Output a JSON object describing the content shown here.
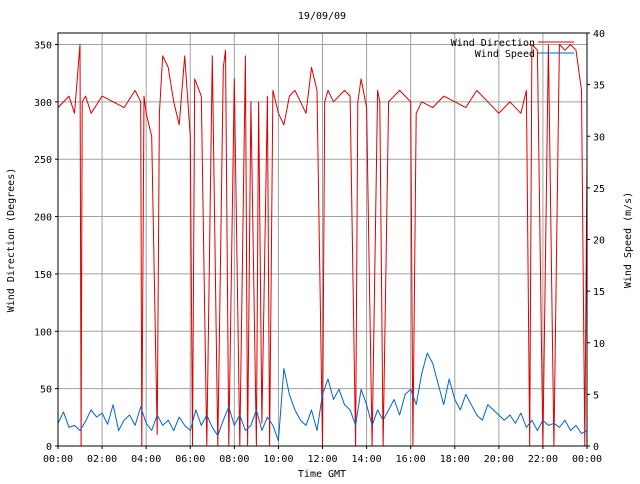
{
  "chart_data": {
    "type": "line",
    "title": "19/09/09",
    "xlabel": "Time GMT",
    "ylabel_left": "Wind Direction (Degrees)",
    "ylabel_right": "Wind Speed (m/s)",
    "x_ticks": [
      "00:00",
      "02:00",
      "04:00",
      "06:00",
      "08:00",
      "10:00",
      "12:00",
      "14:00",
      "16:00",
      "18:00",
      "20:00",
      "22:00",
      "00:00"
    ],
    "x_range_hours": [
      0,
      24
    ],
    "y_left_range": [
      0,
      360
    ],
    "y_left_ticks": [
      0,
      50,
      100,
      150,
      200,
      250,
      300,
      350
    ],
    "y_right_range": [
      0,
      40
    ],
    "y_right_ticks": [
      0,
      5,
      10,
      15,
      20,
      25,
      30,
      35,
      40
    ],
    "grid": true,
    "legend_position": "top-right",
    "colors": {
      "direction": "#dd0000",
      "speed": "#0066cc",
      "grid": "#a0a0a0"
    },
    "series": [
      {
        "name": "Wind Direction",
        "axis": "left",
        "x": [
          0,
          0.5,
          0.75,
          1,
          1.05,
          1.1,
          1.25,
          1.5,
          2,
          2.5,
          3,
          3.5,
          3.75,
          3.8,
          3.9,
          4,
          4.25,
          4.5,
          4.6,
          4.75,
          5,
          5.25,
          5.5,
          5.75,
          6,
          6.1,
          6.2,
          6.5,
          6.75,
          7,
          7.25,
          7.5,
          7.6,
          7.75,
          8,
          8.25,
          8.5,
          8.6,
          8.75,
          9,
          9.1,
          9.25,
          9.5,
          9.6,
          9.75,
          10,
          10.25,
          10.5,
          10.75,
          11,
          11.25,
          11.5,
          11.75,
          12,
          12.1,
          12.25,
          12.5,
          13,
          13.25,
          13.5,
          13.6,
          13.75,
          14,
          14.25,
          14.5,
          14.6,
          14.75,
          15,
          15.5,
          15.75,
          16,
          16.1,
          16.25,
          16.5,
          17,
          17.5,
          18,
          18.5,
          19,
          19.5,
          20,
          20.5,
          21,
          21.25,
          21.4,
          21.5,
          21.75,
          22,
          22.25,
          22.5,
          22.75,
          23,
          23.25,
          23.5,
          23.75,
          23.9,
          24
        ],
        "values": [
          295,
          305,
          290,
          350,
          0,
          300,
          305,
          290,
          305,
          300,
          295,
          310,
          300,
          0,
          305,
          290,
          270,
          10,
          290,
          340,
          330,
          300,
          280,
          340,
          270,
          0,
          320,
          305,
          0,
          340,
          0,
          330,
          345,
          0,
          320,
          0,
          340,
          0,
          300,
          0,
          300,
          20,
          305,
          0,
          310,
          290,
          280,
          305,
          310,
          300,
          290,
          330,
          310,
          0,
          300,
          310,
          300,
          310,
          305,
          0,
          300,
          320,
          295,
          0,
          310,
          300,
          0,
          300,
          310,
          305,
          300,
          0,
          290,
          300,
          295,
          305,
          300,
          295,
          310,
          300,
          290,
          300,
          290,
          310,
          0,
          350,
          345,
          0,
          350,
          0,
          350,
          345,
          350,
          345,
          310,
          0,
          250
        ]
      },
      {
        "name": "Wind Speed",
        "axis": "right",
        "x": [
          0,
          0.25,
          0.5,
          0.75,
          1,
          1.25,
          1.5,
          1.75,
          2,
          2.25,
          2.5,
          2.75,
          3,
          3.25,
          3.5,
          3.75,
          4,
          4.25,
          4.5,
          4.75,
          5,
          5.25,
          5.5,
          5.75,
          6,
          6.25,
          6.5,
          6.75,
          7,
          7.25,
          7.5,
          7.75,
          8,
          8.25,
          8.5,
          8.75,
          9,
          9.25,
          9.5,
          9.75,
          10,
          10.25,
          10.5,
          10.75,
          11,
          11.25,
          11.5,
          11.75,
          12,
          12.25,
          12.5,
          12.75,
          13,
          13.25,
          13.5,
          13.75,
          14,
          14.25,
          14.5,
          14.75,
          15,
          15.25,
          15.5,
          15.75,
          16,
          16.25,
          16.5,
          16.75,
          17,
          17.25,
          17.5,
          17.75,
          18,
          18.25,
          18.5,
          18.75,
          19,
          19.25,
          19.5,
          19.75,
          20,
          20.25,
          20.5,
          20.75,
          21,
          21.25,
          21.5,
          21.75,
          22,
          22.25,
          22.5,
          22.75,
          23,
          23.25,
          23.5,
          23.75,
          24
        ],
        "values": [
          2.2,
          3.3,
          1.8,
          2.0,
          1.5,
          2.4,
          3.5,
          2.8,
          3.2,
          2.1,
          4.0,
          1.5,
          2.5,
          3.0,
          2.0,
          3.8,
          2.2,
          1.5,
          3.0,
          2.0,
          2.5,
          1.5,
          2.8,
          2.0,
          1.5,
          3.5,
          2.0,
          3.0,
          1.8,
          1.0,
          2.5,
          3.8,
          2.0,
          3.0,
          1.5,
          2.0,
          3.5,
          1.5,
          2.8,
          2.0,
          0.5,
          7.5,
          5.0,
          3.5,
          2.5,
          2.0,
          3.5,
          1.5,
          5.0,
          6.5,
          4.5,
          5.5,
          4.0,
          3.5,
          2.0,
          5.5,
          4.0,
          2.0,
          3.5,
          2.5,
          3.5,
          4.5,
          3.0,
          5.0,
          5.5,
          4.0,
          7.0,
          9.0,
          8.0,
          6.0,
          4.0,
          6.5,
          4.5,
          3.5,
          5.0,
          4.0,
          3.0,
          2.5,
          4.0,
          3.5,
          3.0,
          2.5,
          3.0,
          2.2,
          3.2,
          1.8,
          2.5,
          1.5,
          2.5,
          2.0,
          2.2,
          1.8,
          2.5,
          1.5,
          2.0,
          1.2,
          1.5
        ]
      }
    ]
  }
}
